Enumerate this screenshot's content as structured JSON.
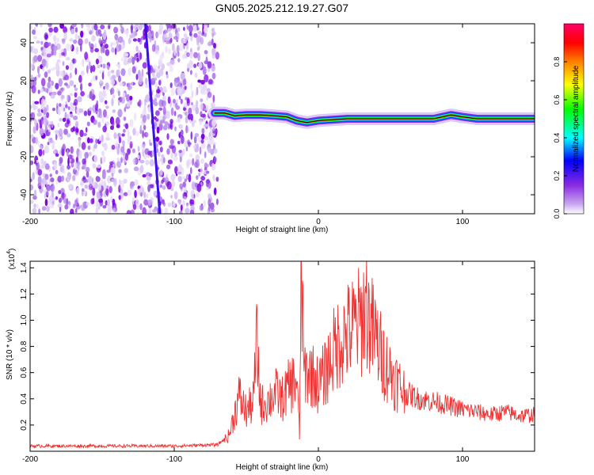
{
  "figure": {
    "title": "GN05.2025.212.19.27.G07"
  },
  "chart_data": [
    {
      "type": "heatmap",
      "panel": "top",
      "xlabel": "Height of straight line (km)",
      "ylabel": "Frequency (Hz)",
      "xlim": [
        -200,
        150
      ],
      "ylim": [
        -50,
        50
      ],
      "xticks": [
        -200,
        -100,
        0,
        100
      ],
      "yticks": [
        -40,
        -20,
        0,
        20,
        40
      ],
      "colorbar": {
        "label": "Normalized spectral amplitude",
        "range": [
          0,
          1
        ],
        "ticks": [
          0.0,
          0.2,
          0.4,
          0.6,
          0.8
        ],
        "colormap": [
          "#ffffff",
          "#8a2be2",
          "#0000ff",
          "#00ffff",
          "#00ff00",
          "#ffff00",
          "#ff8000",
          "#ff0000",
          "#ff0066"
        ]
      },
      "noise_region_x": [
        -200,
        -70
      ],
      "line_feature": {
        "x": [
          -120,
          -110
        ],
        "y": [
          -50,
          50
        ]
      },
      "signal_track": {
        "x": [
          -72,
          -65,
          -58,
          -50,
          -40,
          -30,
          -22,
          -15,
          -8,
          0,
          20,
          50,
          80,
          92,
          100,
          110,
          130,
          150
        ],
        "freq": [
          3,
          3,
          1.5,
          2,
          2,
          1.5,
          1,
          -1,
          -2,
          -1,
          0,
          0,
          0,
          2,
          1,
          0,
          0,
          0
        ]
      }
    },
    {
      "type": "line",
      "panel": "bottom",
      "xlabel": "Height of straight line (km)",
      "ylabel": "SNR (10 * v/v)",
      "yscale_label": "(x10",
      "yscale_exp": "4",
      "yscale_close": ")",
      "xlim": [
        -200,
        150
      ],
      "ylim": [
        0,
        1.45
      ],
      "xticks": [
        -200,
        -100,
        0,
        100
      ],
      "yticks": [
        0.2,
        0.4,
        0.6,
        0.8,
        1.0,
        1.2,
        1.4
      ],
      "series": [
        {
          "color": "#ee3333",
          "x": [
            -200,
            -150,
            -100,
            -70,
            -62,
            -55,
            -50,
            -45,
            -43,
            -40,
            -35,
            -30,
            -25,
            -20,
            -15,
            -13,
            -12,
            -10,
            -5,
            0,
            5,
            10,
            15,
            20,
            25,
            30,
            33,
            35,
            40,
            45,
            50,
            60,
            70,
            80,
            90,
            100,
            110,
            120,
            130,
            140,
            150
          ],
          "y": [
            0.04,
            0.04,
            0.04,
            0.05,
            0.12,
            0.42,
            0.3,
            0.38,
            0.85,
            0.35,
            0.38,
            0.45,
            0.4,
            0.5,
            0.55,
            0.1,
            1.45,
            0.6,
            0.6,
            0.5,
            0.6,
            0.75,
            0.85,
            0.9,
            0.95,
            1.0,
            1.15,
            1.0,
            0.85,
            0.7,
            0.6,
            0.45,
            0.4,
            0.38,
            0.35,
            0.32,
            0.3,
            0.28,
            0.3,
            0.27,
            0.28
          ]
        }
      ]
    }
  ]
}
